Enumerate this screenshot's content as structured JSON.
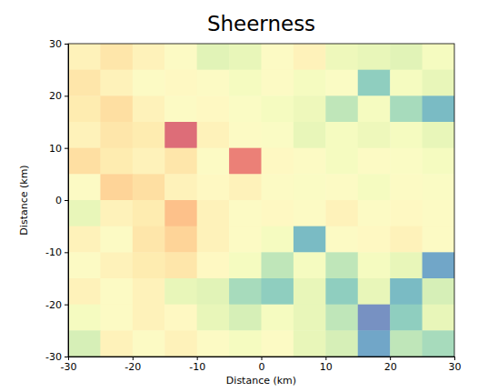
{
  "chart_data": {
    "type": "heatmap",
    "title": "Sheerness",
    "xlabel": "Distance (km)",
    "ylabel": "Distance (km)",
    "xlim": [
      -30,
      30
    ],
    "ylim": [
      -30,
      30
    ],
    "xticks": [
      -30,
      -20,
      -10,
      0,
      10,
      20,
      30
    ],
    "yticks": [
      -30,
      -20,
      -10,
      0,
      10,
      20,
      30
    ],
    "color": "Spectral",
    "clim": [
      0,
      1
    ],
    "x_edges": [
      -30,
      -25,
      -20,
      -15,
      -10,
      -5,
      0,
      5,
      10,
      15,
      20,
      25,
      30
    ],
    "y_edges": [
      30,
      25,
      20,
      15,
      10,
      5,
      0,
      -5,
      -10,
      -15,
      -20,
      -25,
      -30
    ],
    "cells": [
      [
        0.45,
        0.4,
        0.45,
        0.5,
        0.62,
        0.6,
        0.5,
        0.45,
        0.58,
        0.6,
        0.62,
        0.55
      ],
      [
        0.4,
        0.45,
        0.5,
        0.48,
        0.5,
        0.55,
        0.5,
        0.55,
        0.52,
        0.8,
        0.55,
        0.6
      ],
      [
        0.42,
        0.38,
        0.45,
        0.5,
        0.48,
        0.52,
        0.55,
        0.58,
        0.7,
        0.55,
        0.75,
        0.85
      ],
      [
        0.45,
        0.4,
        0.42,
        0.1,
        0.45,
        0.5,
        0.52,
        0.6,
        0.55,
        0.58,
        0.55,
        0.6
      ],
      [
        0.38,
        0.42,
        0.45,
        0.4,
        0.5,
        0.15,
        0.48,
        0.5,
        0.55,
        0.5,
        0.52,
        0.55
      ],
      [
        0.5,
        0.35,
        0.38,
        0.45,
        0.48,
        0.45,
        0.5,
        0.52,
        0.5,
        0.55,
        0.5,
        0.52
      ],
      [
        0.6,
        0.45,
        0.42,
        0.3,
        0.45,
        0.5,
        0.48,
        0.5,
        0.45,
        0.5,
        0.48,
        0.5
      ],
      [
        0.45,
        0.5,
        0.4,
        0.35,
        0.45,
        0.5,
        0.55,
        0.85,
        0.5,
        0.48,
        0.45,
        0.5
      ],
      [
        0.5,
        0.45,
        0.42,
        0.4,
        0.48,
        0.55,
        0.7,
        0.55,
        0.7,
        0.55,
        0.6,
        0.9
      ],
      [
        0.45,
        0.5,
        0.45,
        0.6,
        0.62,
        0.75,
        0.8,
        0.6,
        0.8,
        0.6,
        0.85,
        0.65
      ],
      [
        0.55,
        0.5,
        0.45,
        0.48,
        0.6,
        0.65,
        0.55,
        0.6,
        0.7,
        0.95,
        0.8,
        0.6
      ],
      [
        0.65,
        0.45,
        0.5,
        0.45,
        0.5,
        0.55,
        0.5,
        0.6,
        0.65,
        0.9,
        0.7,
        0.75
      ]
    ]
  }
}
